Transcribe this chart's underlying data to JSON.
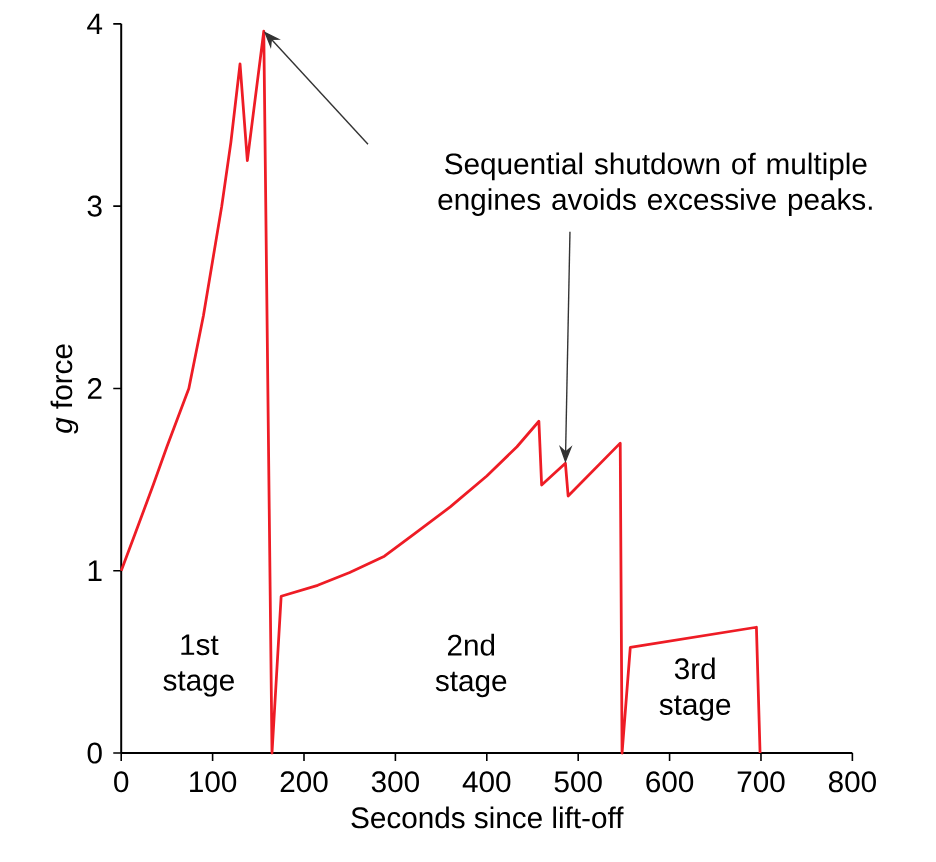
{
  "chart_data": {
    "type": "line",
    "x": [
      0,
      15,
      35,
      50,
      74,
      90,
      110,
      120,
      130,
      138,
      156,
      165,
      175,
      215,
      250,
      288,
      320,
      360,
      400,
      433,
      457,
      460,
      486,
      489,
      546,
      548,
      557,
      695,
      699
    ],
    "series": [
      {
        "color": "#ee1c25",
        "values": [
          1,
          1.2,
          1.47,
          1.68,
          2,
          2.4,
          3,
          3.35,
          3.78,
          3.25,
          3.96,
          0,
          0.86,
          0.92,
          0.99,
          1.08,
          1.2,
          1.35,
          1.52,
          1.68,
          1.82,
          1.47,
          1.59,
          1.41,
          1.7,
          0,
          0.58,
          0.69,
          0
        ]
      }
    ],
    "xlabel": "Seconds since lift-off",
    "ylabel": "*g* force",
    "xlim": [
      0,
      800
    ],
    "ylim": [
      0,
      4
    ],
    "xticks": [
      0,
      100,
      200,
      300,
      400,
      500,
      600,
      700,
      800
    ],
    "yticks": [
      0,
      1,
      2,
      3,
      4
    ],
    "annotations": [
      {
        "text": "Sequential shutdown of multiple engines avoids excessive peaks.",
        "x": 486,
        "y": 1.59
      },
      "1st stage",
      "2nd stage",
      "3rd stage"
    ],
    "grid": false,
    "marker": "none",
    "line_style": "solid"
  }
}
